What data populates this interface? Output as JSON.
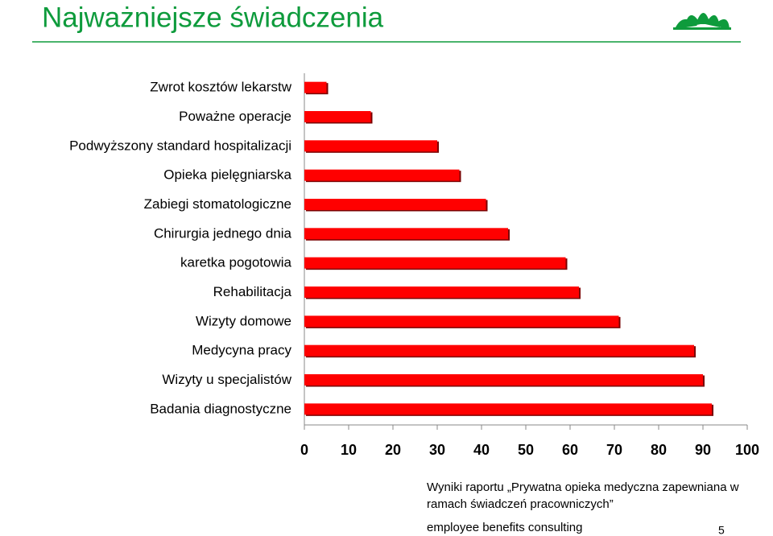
{
  "slide": {
    "title": "Najważniejsze świadczenia",
    "note": [
      "Wyniki raportu „Prywatna opieka medyczna zapewniana w",
      "ramach świadczeń pracowniczych”"
    ],
    "footer": "employee benefits consulting",
    "page": "5"
  },
  "chart_data": {
    "type": "barh",
    "categories": [
      "Zwrot kosztów lekarstw",
      "Poważne operacje",
      "Podwyższony standard hospitalizacji",
      "Opieka pielęgniarska",
      "Zabiegi stomatologiczne",
      "Chirurgia jednego dnia",
      "karetka pogotowia",
      "Rehabilitacja",
      "Wizyty domowe",
      "Medycyna pracy",
      "Wizyty u specjalistów",
      "Badania diagnostyczne"
    ],
    "values": [
      5,
      15,
      30,
      35,
      41,
      46,
      59,
      62,
      71,
      88,
      90,
      92
    ],
    "color": "#ff0000",
    "xlim": [
      0,
      100
    ],
    "xticks": [
      0,
      10,
      20,
      30,
      40,
      50,
      60,
      70,
      80,
      90,
      100
    ]
  }
}
